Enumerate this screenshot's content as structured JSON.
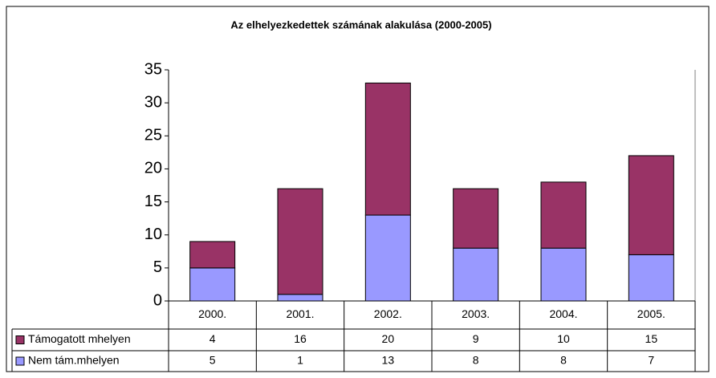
{
  "chart_data": {
    "type": "bar",
    "stacked": true,
    "title": "Az elhelyezkedettek számának alakulása (2000-2005)",
    "categories": [
      "2000.",
      "2001.",
      "2002.",
      "2003.",
      "2004.",
      "2005."
    ],
    "series": [
      {
        "name": "Támogatott mhelyen",
        "color": "#993366",
        "values": [
          4,
          16,
          20,
          9,
          10,
          15
        ]
      },
      {
        "name": "Nem tám.mhelyen",
        "color": "#9999ff",
        "values": [
          5,
          1,
          13,
          8,
          8,
          7
        ]
      }
    ],
    "ylim": [
      0,
      35
    ],
    "yticks": [
      0,
      5,
      10,
      15,
      20,
      25,
      30,
      35
    ],
    "grid": false
  }
}
